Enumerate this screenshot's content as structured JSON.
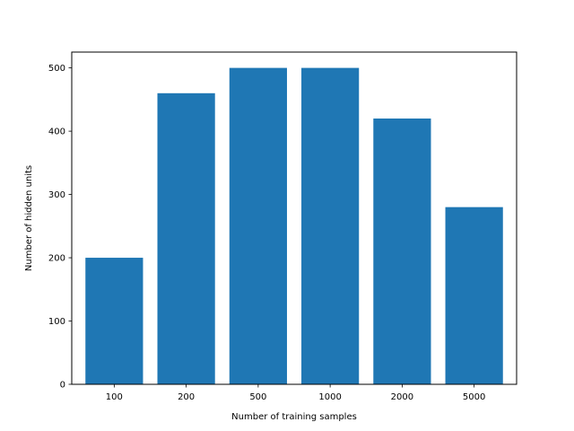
{
  "chart_data": {
    "type": "bar",
    "categories": [
      "100",
      "200",
      "500",
      "1000",
      "2000",
      "5000"
    ],
    "values": [
      200,
      460,
      500,
      500,
      420,
      280
    ],
    "title": "",
    "xlabel": "Number of training samples",
    "ylabel": "Number of hidden units",
    "ylim": [
      0,
      525
    ],
    "yticks": [
      0,
      100,
      200,
      300,
      400,
      500
    ],
    "grid": false,
    "bar_color": "#1f77b4"
  }
}
